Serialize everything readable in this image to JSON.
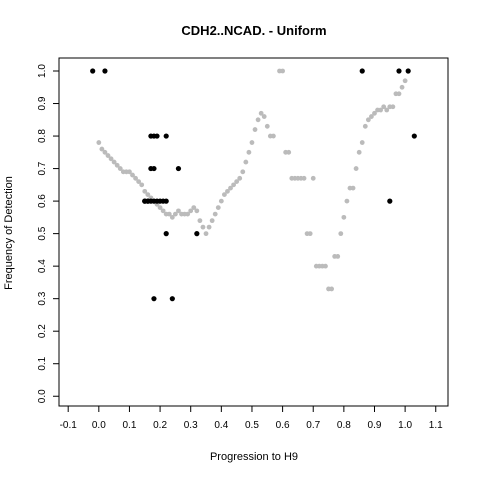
{
  "chart_data": {
    "type": "scatter",
    "title": "CDH2..NCAD. - Uniform",
    "xlabel": "Progression to H9",
    "ylabel": "Frequency of Detection",
    "xlim": [
      -0.13,
      1.14
    ],
    "ylim": [
      -0.03,
      1.04
    ],
    "x_ticks": [
      "-0.1",
      "0.0",
      "0.1",
      "0.2",
      "0.3",
      "0.4",
      "0.5",
      "0.6",
      "0.7",
      "0.8",
      "0.9",
      "1.0",
      "1.1"
    ],
    "y_ticks": [
      "0.0",
      "0.1",
      "0.2",
      "0.3",
      "0.4",
      "0.5",
      "0.6",
      "0.7",
      "0.8",
      "0.9",
      "1.0"
    ],
    "grid": false,
    "colors": {
      "smoothed": "#bbbbbb",
      "observed": "#000000"
    },
    "series": [
      {
        "marker": "gray dots (smoothed curve)",
        "x": [
          0.0,
          0.01,
          0.02,
          0.03,
          0.04,
          0.05,
          0.06,
          0.07,
          0.08,
          0.09,
          0.1,
          0.11,
          0.12,
          0.13,
          0.14,
          0.15,
          0.16,
          0.17,
          0.18,
          0.19,
          0.2,
          0.21,
          0.22,
          0.23,
          0.24,
          0.25,
          0.26,
          0.27,
          0.28,
          0.29,
          0.3,
          0.31,
          0.32,
          0.33,
          0.34,
          0.35,
          0.36,
          0.37,
          0.38,
          0.39,
          0.4,
          0.41,
          0.42,
          0.43,
          0.44,
          0.45,
          0.46,
          0.47,
          0.48,
          0.49,
          0.5,
          0.51,
          0.52,
          0.53,
          0.54,
          0.55,
          0.56,
          0.57,
          0.59,
          0.6,
          0.61,
          0.62,
          0.63,
          0.64,
          0.65,
          0.66,
          0.67,
          0.68,
          0.69,
          0.7,
          0.71,
          0.72,
          0.73,
          0.74,
          0.75,
          0.76,
          0.77,
          0.78,
          0.79,
          0.8,
          0.81,
          0.82,
          0.83,
          0.84,
          0.85,
          0.86,
          0.87,
          0.88,
          0.89,
          0.9,
          0.91,
          0.92,
          0.93,
          0.94,
          0.95,
          0.96,
          0.97,
          0.98,
          0.99,
          1.0
        ],
        "y": [
          0.78,
          0.76,
          0.75,
          0.74,
          0.73,
          0.72,
          0.71,
          0.7,
          0.69,
          0.69,
          0.69,
          0.68,
          0.67,
          0.66,
          0.65,
          0.63,
          0.62,
          0.61,
          0.6,
          0.59,
          0.58,
          0.57,
          0.56,
          0.56,
          0.55,
          0.56,
          0.57,
          0.56,
          0.56,
          0.56,
          0.57,
          0.58,
          0.57,
          0.54,
          0.52,
          0.5,
          0.52,
          0.54,
          0.56,
          0.58,
          0.6,
          0.62,
          0.63,
          0.64,
          0.65,
          0.66,
          0.67,
          0.69,
          0.72,
          0.75,
          0.78,
          0.82,
          0.85,
          0.87,
          0.86,
          0.83,
          0.8,
          0.8,
          1.0,
          1.0,
          0.75,
          0.75,
          0.67,
          0.67,
          0.67,
          0.67,
          0.67,
          0.5,
          0.5,
          0.67,
          0.4,
          0.4,
          0.4,
          0.4,
          0.33,
          0.33,
          0.43,
          0.43,
          0.5,
          0.55,
          0.6,
          0.64,
          0.64,
          0.7,
          0.75,
          0.78,
          0.83,
          0.85,
          0.86,
          0.87,
          0.88,
          0.88,
          0.89,
          0.88,
          0.89,
          0.89,
          0.93,
          0.93,
          0.95,
          0.97
        ]
      },
      {
        "marker": "black dots (observed)",
        "x": [
          -0.02,
          0.02,
          0.15,
          0.16,
          0.17,
          0.18,
          0.19,
          0.17,
          0.18,
          0.22,
          0.17,
          0.18,
          0.15,
          0.16,
          0.19,
          0.2,
          0.21,
          0.22,
          0.26,
          0.22,
          0.32,
          0.18,
          0.24,
          0.86,
          0.98,
          1.01,
          1.03,
          0.95
        ],
        "y": [
          1.0,
          1.0,
          0.6,
          0.6,
          0.8,
          0.8,
          0.8,
          0.7,
          0.7,
          0.8,
          0.6,
          0.6,
          0.6,
          0.6,
          0.6,
          0.6,
          0.6,
          0.6,
          0.7,
          0.5,
          0.5,
          0.3,
          0.3,
          1.0,
          1.0,
          1.0,
          0.8,
          0.6
        ]
      }
    ]
  }
}
